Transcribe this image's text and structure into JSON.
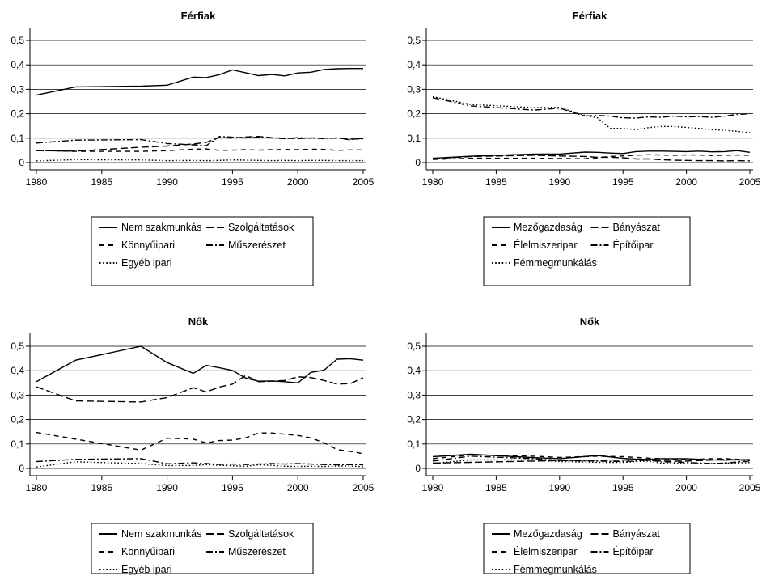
{
  "chart_data": [
    {
      "type": "line",
      "title": "Férfiak",
      "xlim": [
        1980,
        2005
      ],
      "ylim": [
        0,
        0.5
      ],
      "xticks": [
        "1980",
        "1985",
        "1990",
        "1995",
        "2000",
        "2005"
      ],
      "yticks": [
        "0",
        "0,1",
        "0,2",
        "0,3",
        "0,4",
        "0,5"
      ],
      "grid": "horizontal",
      "legend_position": "bottom",
      "series": [
        {
          "name": "Nem szakmunkás",
          "style": "solid",
          "x": [
            1980,
            1983,
            1988,
            1990,
            1992,
            1993,
            1994,
            1995,
            1996,
            1997,
            1998,
            1999,
            2000,
            2001,
            2002,
            2003,
            2004,
            2005
          ],
          "y": [
            0.276,
            0.31,
            0.313,
            0.317,
            0.35,
            0.348,
            0.36,
            0.379,
            0.368,
            0.356,
            0.361,
            0.355,
            0.367,
            0.37,
            0.381,
            0.384,
            0.385,
            0.385
          ]
        },
        {
          "name": "Szolgáltatások",
          "style": "longdash",
          "x": [
            1980,
            1983,
            1988,
            1990,
            1992,
            1993,
            1994,
            1995,
            1996,
            1997,
            1998,
            1999,
            2000,
            2001,
            2002,
            2003,
            2004,
            2005
          ],
          "y": [
            0.049,
            0.047,
            0.063,
            0.068,
            0.076,
            0.083,
            0.103,
            0.1,
            0.105,
            0.107,
            0.102,
            0.1,
            0.098,
            0.101,
            0.1,
            0.1,
            0.096,
            0.098
          ]
        },
        {
          "name": "Könnyűipari",
          "style": "dash",
          "x": [
            1980,
            1983,
            1988,
            1990,
            1992,
            1993,
            1994,
            1995,
            1996,
            1997,
            1998,
            1999,
            2000,
            2001,
            2002,
            2003,
            2004,
            2005
          ],
          "y": [
            0.05,
            0.046,
            0.046,
            0.049,
            0.055,
            0.056,
            0.05,
            0.051,
            0.053,
            0.051,
            0.053,
            0.054,
            0.053,
            0.055,
            0.054,
            0.05,
            0.052,
            0.052
          ]
        },
        {
          "name": "Műszerészet",
          "style": "dashdot",
          "x": [
            1980,
            1983,
            1988,
            1990,
            1992,
            1993,
            1994,
            1995,
            1996,
            1997,
            1998,
            1999,
            2000,
            2001,
            2002,
            2003,
            2004,
            2005
          ],
          "y": [
            0.08,
            0.092,
            0.094,
            0.078,
            0.073,
            0.07,
            0.107,
            0.104,
            0.101,
            0.104,
            0.101,
            0.098,
            0.102,
            0.1,
            0.098,
            0.101,
            0.093,
            0.1
          ]
        },
        {
          "name": "Egyéb ipari",
          "style": "dot",
          "x": [
            1980,
            1983,
            1988,
            1990,
            1992,
            1993,
            1994,
            1995,
            1996,
            1997,
            1998,
            1999,
            2000,
            2001,
            2002,
            2003,
            2004,
            2005
          ],
          "y": [
            0.007,
            0.012,
            0.011,
            0.008,
            0.009,
            0.008,
            0.009,
            0.011,
            0.01,
            0.009,
            0.008,
            0.009,
            0.008,
            0.009,
            0.009,
            0.008,
            0.008,
            0.008
          ]
        }
      ]
    },
    {
      "type": "line",
      "title": "Férfiak",
      "xlim": [
        1980,
        2005
      ],
      "ylim": [
        0,
        0.5
      ],
      "xticks": [
        "1980",
        "1985",
        "1990",
        "1995",
        "2000",
        "2005"
      ],
      "yticks": [
        "0",
        "0,1",
        "0,2",
        "0,3",
        "0,4",
        "0,5"
      ],
      "grid": "horizontal",
      "legend_position": "bottom",
      "series": [
        {
          "name": "Mezőgazdaság",
          "style": "solid",
          "x": [
            1980,
            1983,
            1988,
            1990,
            1992,
            1993,
            1994,
            1995,
            1996,
            1997,
            1998,
            1999,
            2000,
            2001,
            2002,
            2003,
            2004,
            2005
          ],
          "y": [
            0.018,
            0.026,
            0.035,
            0.035,
            0.043,
            0.042,
            0.039,
            0.037,
            0.045,
            0.047,
            0.047,
            0.046,
            0.045,
            0.047,
            0.044,
            0.045,
            0.049,
            0.042
          ]
        },
        {
          "name": "Bányászat",
          "style": "longdash",
          "x": [
            1980,
            1983,
            1988,
            1990,
            1992,
            1993,
            1994,
            1995,
            1996,
            1997,
            1998,
            1999,
            2000,
            2001,
            2002,
            2003,
            2004,
            2005
          ],
          "y": [
            0.016,
            0.025,
            0.03,
            0.027,
            0.025,
            0.022,
            0.022,
            0.02,
            0.015,
            0.015,
            0.012,
            0.01,
            0.009,
            0.008,
            0.008,
            0.007,
            0.008,
            0.007
          ]
        },
        {
          "name": "Élelmiszeripar",
          "style": "dash",
          "x": [
            1980,
            1983,
            1988,
            1990,
            1992,
            1993,
            1994,
            1995,
            1996,
            1997,
            1998,
            1999,
            2000,
            2001,
            2002,
            2003,
            2004,
            2005
          ],
          "y": [
            0.013,
            0.018,
            0.018,
            0.017,
            0.016,
            0.02,
            0.025,
            0.027,
            0.03,
            0.032,
            0.031,
            0.03,
            0.031,
            0.031,
            0.029,
            0.03,
            0.031,
            0.03
          ]
        },
        {
          "name": "Építőipar",
          "style": "dashdot",
          "x": [
            1980,
            1983,
            1988,
            1990,
            1992,
            1993,
            1994,
            1995,
            1996,
            1997,
            1998,
            1999,
            2000,
            2001,
            2002,
            2003,
            2004,
            2005
          ],
          "y": [
            0.266,
            0.232,
            0.215,
            0.223,
            0.19,
            0.193,
            0.19,
            0.183,
            0.182,
            0.187,
            0.185,
            0.19,
            0.187,
            0.188,
            0.185,
            0.19,
            0.197,
            0.2
          ]
        },
        {
          "name": "Fémmegmunkálás",
          "style": "dot",
          "x": [
            1980,
            1983,
            1988,
            1990,
            1992,
            1993,
            1994,
            1995,
            1996,
            1997,
            1998,
            1999,
            2000,
            2001,
            2002,
            2003,
            2004,
            2005
          ],
          "y": [
            0.27,
            0.238,
            0.225,
            0.226,
            0.193,
            0.183,
            0.14,
            0.14,
            0.135,
            0.143,
            0.148,
            0.148,
            0.144,
            0.14,
            0.135,
            0.132,
            0.128,
            0.122
          ]
        }
      ]
    },
    {
      "type": "line",
      "title": "Nők",
      "xlim": [
        1980,
        2005
      ],
      "ylim": [
        0,
        0.5
      ],
      "xticks": [
        "1980",
        "1985",
        "1990",
        "1995",
        "2000",
        "2005"
      ],
      "yticks": [
        "0",
        "0,1",
        "0,2",
        "0,3",
        "0,4",
        "0,5"
      ],
      "grid": "horizontal",
      "legend_position": "bottom",
      "series": [
        {
          "name": "Nem szakmunkás",
          "style": "solid",
          "x": [
            1980,
            1983,
            1988,
            1990,
            1992,
            1993,
            1994,
            1995,
            1996,
            1997,
            1998,
            1999,
            2000,
            2001,
            2002,
            2003,
            2004,
            2005
          ],
          "y": [
            0.355,
            0.443,
            0.5,
            0.433,
            0.389,
            0.422,
            0.412,
            0.401,
            0.37,
            0.357,
            0.358,
            0.355,
            0.35,
            0.393,
            0.402,
            0.447,
            0.449,
            0.443
          ]
        },
        {
          "name": "Szolgáltatások",
          "style": "longdash",
          "x": [
            1980,
            1983,
            1988,
            1990,
            1992,
            1993,
            1994,
            1995,
            1996,
            1997,
            1998,
            1999,
            2000,
            2001,
            2002,
            2003,
            2004,
            2005
          ],
          "y": [
            0.334,
            0.276,
            0.272,
            0.29,
            0.33,
            0.313,
            0.333,
            0.345,
            0.38,
            0.355,
            0.357,
            0.36,
            0.375,
            0.372,
            0.36,
            0.345,
            0.347,
            0.371
          ]
        },
        {
          "name": "Könnyűipari",
          "style": "dash",
          "x": [
            1980,
            1983,
            1988,
            1990,
            1992,
            1993,
            1994,
            1995,
            1996,
            1997,
            1998,
            1999,
            2000,
            2001,
            2002,
            2003,
            2004,
            2005
          ],
          "y": [
            0.147,
            0.12,
            0.075,
            0.124,
            0.12,
            0.104,
            0.114,
            0.116,
            0.125,
            0.145,
            0.145,
            0.14,
            0.135,
            0.125,
            0.105,
            0.077,
            0.07,
            0.06
          ]
        },
        {
          "name": "Műszerészet",
          "style": "dashdot",
          "x": [
            1980,
            1983,
            1988,
            1990,
            1992,
            1993,
            1994,
            1995,
            1996,
            1997,
            1998,
            1999,
            2000,
            2001,
            2002,
            2003,
            2004,
            2005
          ],
          "y": [
            0.028,
            0.037,
            0.04,
            0.019,
            0.023,
            0.02,
            0.017,
            0.018,
            0.016,
            0.018,
            0.02,
            0.018,
            0.02,
            0.018,
            0.016,
            0.015,
            0.016,
            0.015
          ]
        },
        {
          "name": "Egyéb ipari",
          "style": "dot",
          "x": [
            1980,
            1983,
            1988,
            1990,
            1992,
            1993,
            1994,
            1995,
            1996,
            1997,
            1998,
            1999,
            2000,
            2001,
            2002,
            2003,
            2004,
            2005
          ],
          "y": [
            0.006,
            0.027,
            0.02,
            0.012,
            0.012,
            0.016,
            0.013,
            0.011,
            0.009,
            0.015,
            0.013,
            0.009,
            0.008,
            0.009,
            0.008,
            0.01,
            0.01,
            0.007
          ]
        }
      ]
    },
    {
      "type": "line",
      "title": "Nők",
      "xlim": [
        1980,
        2005
      ],
      "ylim": [
        0,
        0.5
      ],
      "xticks": [
        "1980",
        "1985",
        "1990",
        "1995",
        "2000",
        "2005"
      ],
      "yticks": [
        "0",
        "0,1",
        "0,2",
        "0,3",
        "0,4",
        "0,5"
      ],
      "grid": "horizontal",
      "legend_position": "bottom",
      "series": [
        {
          "name": "Mezőgazdaság",
          "style": "solid",
          "x": [
            1980,
            1983,
            1988,
            1990,
            1993,
            1995,
            1996,
            1997,
            1998,
            2000,
            2002,
            2003,
            2005
          ],
          "y": [
            0.048,
            0.058,
            0.044,
            0.04,
            0.053,
            0.041,
            0.038,
            0.037,
            0.04,
            0.04,
            0.035,
            0.034,
            0.036
          ]
        },
        {
          "name": "Bányászat",
          "style": "longdash",
          "x": [
            1980,
            1983,
            1988,
            1990,
            1993,
            1995,
            1996,
            1997,
            1998,
            2000,
            2002,
            2003,
            2005
          ],
          "y": [
            0.022,
            0.025,
            0.03,
            0.032,
            0.034,
            0.034,
            0.036,
            0.033,
            0.03,
            0.03,
            0.034,
            0.038,
            0.032
          ]
        },
        {
          "name": "Élelmiszeripar",
          "style": "dash",
          "x": [
            1980,
            1983,
            1988,
            1990,
            1993,
            1995,
            1996,
            1997,
            1998,
            2000,
            2002,
            2003,
            2005
          ],
          "y": [
            0.04,
            0.055,
            0.05,
            0.045,
            0.05,
            0.048,
            0.045,
            0.042,
            0.04,
            0.035,
            0.04,
            0.04,
            0.035
          ]
        },
        {
          "name": "Építőipar",
          "style": "dashdot",
          "x": [
            1980,
            1983,
            1988,
            1990,
            1993,
            1995,
            1996,
            1997,
            1998,
            2000,
            2002,
            2003,
            2005
          ],
          "y": [
            0.03,
            0.05,
            0.04,
            0.032,
            0.03,
            0.028,
            0.03,
            0.035,
            0.027,
            0.025,
            0.02,
            0.022,
            0.03
          ]
        },
        {
          "name": "Fémmegmunkálás",
          "style": "dot",
          "x": [
            1980,
            1983,
            1988,
            1990,
            1993,
            1995,
            1996,
            1997,
            1998,
            2000,
            2002,
            2003,
            2005
          ],
          "y": [
            0.02,
            0.035,
            0.035,
            0.028,
            0.025,
            0.025,
            0.028,
            0.03,
            0.022,
            0.02,
            0.02,
            0.022,
            0.024
          ]
        }
      ]
    }
  ]
}
